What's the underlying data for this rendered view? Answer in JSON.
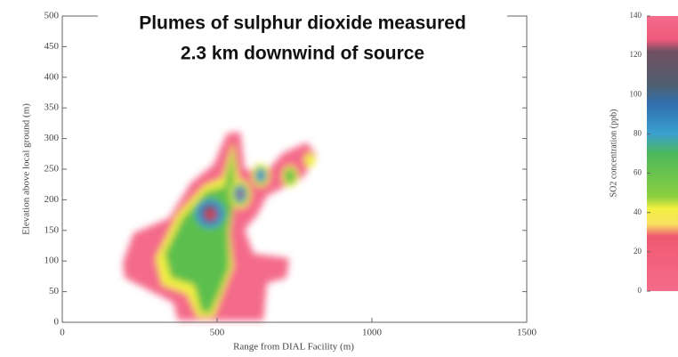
{
  "chart_data": {
    "type": "heatmap",
    "title": [
      "Plumes of sulphur dioxide measured",
      "2.3 km downwind of source"
    ],
    "xlabel": "Range from DIAL Facility (m)",
    "ylabel": "Elevation above local ground (m)",
    "xlim": [
      0,
      1500
    ],
    "xticks": [
      0,
      500,
      1000,
      1500
    ],
    "ylim": [
      0,
      500
    ],
    "yticks": [
      0,
      50,
      100,
      150,
      200,
      250,
      300,
      350,
      400,
      450,
      500
    ],
    "colorbar": {
      "label": "SO2 concentration (ppb)",
      "lim": [
        0,
        140
      ],
      "ticks": [
        0,
        20,
        40,
        60,
        80,
        100,
        120,
        140
      ],
      "stops": [
        {
          "value": 0,
          "color": "#f46a8a"
        },
        {
          "value": 28,
          "color": "#f05a70"
        },
        {
          "value": 34,
          "color": "#f8e060"
        },
        {
          "value": 42,
          "color": "#f2f040"
        },
        {
          "value": 48,
          "color": "#8cd040"
        },
        {
          "value": 70,
          "color": "#4cb85a"
        },
        {
          "value": 80,
          "color": "#3aa0d0"
        },
        {
          "value": 95,
          "color": "#3070b0"
        },
        {
          "value": 105,
          "color": "#506070"
        },
        {
          "value": 122,
          "color": "#705060"
        },
        {
          "value": 128,
          "color": "#f05a7c"
        },
        {
          "value": 140,
          "color": "#f46a8a"
        }
      ]
    }
  }
}
